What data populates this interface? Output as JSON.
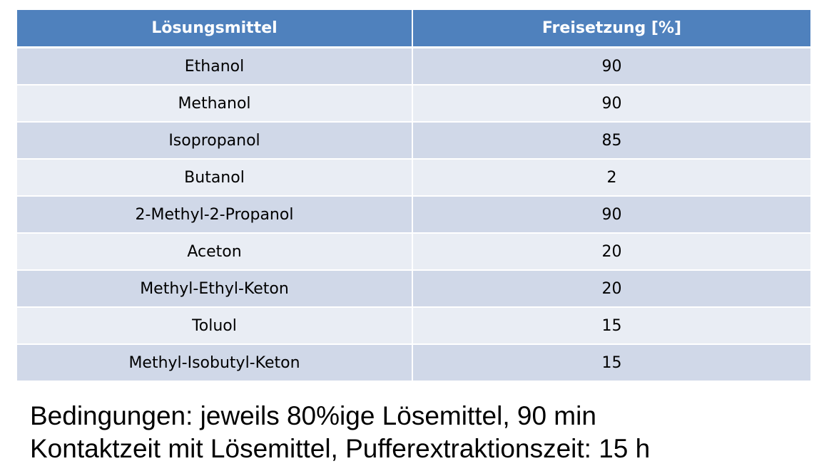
{
  "table": {
    "headers": [
      "Lösungsmittel",
      "Freisetzung [%]"
    ],
    "rows": [
      [
        "Ethanol",
        "90"
      ],
      [
        "Methanol",
        "90"
      ],
      [
        "Isopropanol",
        "85"
      ],
      [
        "Butanol",
        "2"
      ],
      [
        "2-Methyl-2-Propanol",
        "90"
      ],
      [
        "Aceton",
        "20"
      ],
      [
        "Methyl-Ethyl-Keton",
        "20"
      ],
      [
        "Toluol",
        "15"
      ],
      [
        "Methyl-Isobutyl-Keton",
        "15"
      ]
    ],
    "colors": {
      "header_bg": "#4f81bd",
      "header_text": "#ffffff",
      "row_odd_bg": "#d0d8e8",
      "row_even_bg": "#e9edf4"
    }
  },
  "conditions": {
    "line1": "Bedingungen: jeweils 80%ige Lösemittel, 90 min",
    "line2": "Kontaktzeit mit Lösemittel, Pufferextraktionszeit: 15 h"
  }
}
